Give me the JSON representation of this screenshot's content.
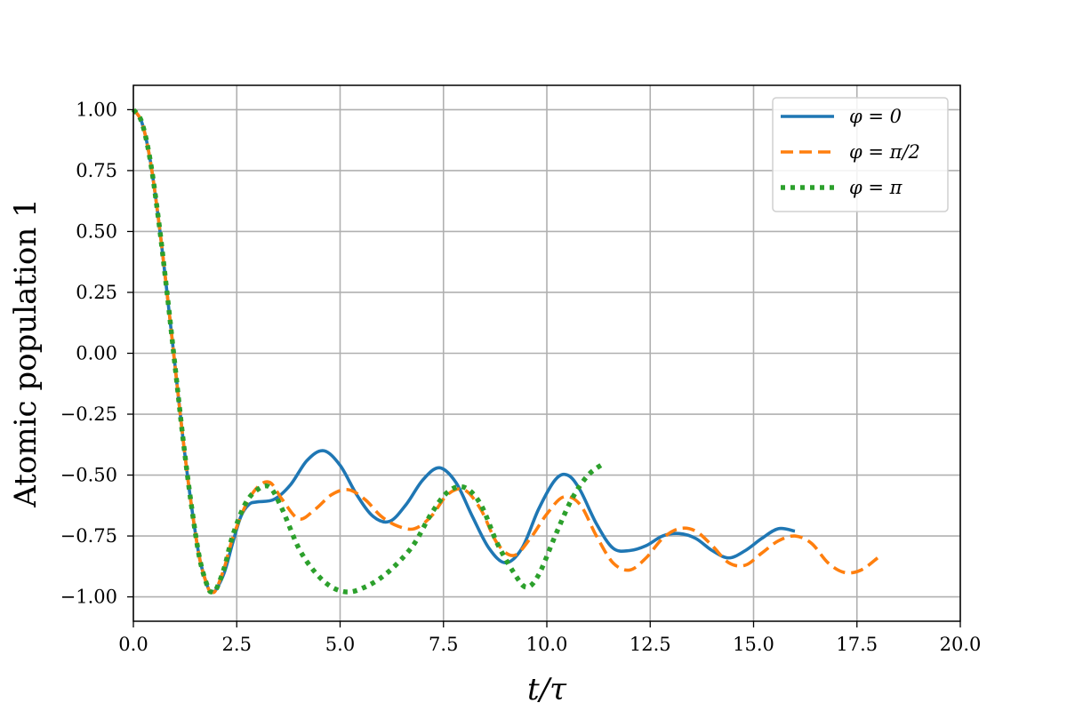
{
  "chart_data": {
    "type": "line",
    "title": "",
    "xlabel": "t/τ",
    "ylabel": "Atomic population 1",
    "xlim": [
      0,
      20
    ],
    "ylim": [
      -1.1,
      1.1
    ],
    "xticks": [
      "0.0",
      "2.5",
      "5.0",
      "7.5",
      "10.0",
      "12.5",
      "15.0",
      "17.5",
      "20.0"
    ],
    "yticks": [
      "1.00",
      "0.75",
      "0.50",
      "0.25",
      "0.00",
      "−0.25",
      "−0.50",
      "−0.75",
      "−1.00"
    ],
    "grid": true,
    "legend_position": "top-right",
    "series": [
      {
        "name": "φ = 0",
        "color": "#1f77b4",
        "style": "solid",
        "points": [
          [
            0,
            1.0
          ],
          [
            0.2,
            0.95
          ],
          [
            0.4,
            0.8
          ],
          [
            0.6,
            0.56
          ],
          [
            0.8,
            0.27
          ],
          [
            1.0,
            -0.04
          ],
          [
            1.2,
            -0.35
          ],
          [
            1.4,
            -0.62
          ],
          [
            1.6,
            -0.84
          ],
          [
            1.8,
            -0.96
          ],
          [
            1.9,
            -0.98
          ],
          [
            2.0,
            -0.97
          ],
          [
            2.2,
            -0.9
          ],
          [
            2.4,
            -0.78
          ],
          [
            2.6,
            -0.67
          ],
          [
            2.8,
            -0.62
          ],
          [
            3.0,
            -0.61
          ],
          [
            3.4,
            -0.6
          ],
          [
            3.8,
            -0.54
          ],
          [
            4.2,
            -0.44
          ],
          [
            4.6,
            -0.4
          ],
          [
            5.0,
            -0.46
          ],
          [
            5.4,
            -0.58
          ],
          [
            5.8,
            -0.67
          ],
          [
            6.2,
            -0.69
          ],
          [
            6.6,
            -0.62
          ],
          [
            7.0,
            -0.52
          ],
          [
            7.4,
            -0.47
          ],
          [
            7.8,
            -0.53
          ],
          [
            8.2,
            -0.67
          ],
          [
            8.6,
            -0.8
          ],
          [
            9.0,
            -0.86
          ],
          [
            9.4,
            -0.8
          ],
          [
            9.8,
            -0.64
          ],
          [
            10.2,
            -0.52
          ],
          [
            10.5,
            -0.5
          ],
          [
            10.8,
            -0.56
          ],
          [
            11.2,
            -0.7
          ],
          [
            11.6,
            -0.8
          ],
          [
            12.0,
            -0.81
          ],
          [
            12.4,
            -0.79
          ],
          [
            12.8,
            -0.75
          ],
          [
            13.2,
            -0.74
          ],
          [
            13.6,
            -0.76
          ],
          [
            14.0,
            -0.81
          ],
          [
            14.4,
            -0.84
          ],
          [
            14.8,
            -0.81
          ],
          [
            15.2,
            -0.76
          ],
          [
            15.6,
            -0.72
          ],
          [
            16.0,
            -0.73
          ]
        ]
      },
      {
        "name": "φ = π/2",
        "color": "#ff7f0e",
        "style": "dashed",
        "points": [
          [
            0,
            1.0
          ],
          [
            0.2,
            0.95
          ],
          [
            0.4,
            0.8
          ],
          [
            0.6,
            0.56
          ],
          [
            0.8,
            0.27
          ],
          [
            1.0,
            -0.04
          ],
          [
            1.2,
            -0.35
          ],
          [
            1.4,
            -0.62
          ],
          [
            1.6,
            -0.84
          ],
          [
            1.8,
            -0.96
          ],
          [
            1.9,
            -0.98
          ],
          [
            2.0,
            -0.97
          ],
          [
            2.2,
            -0.88
          ],
          [
            2.4,
            -0.76
          ],
          [
            2.7,
            -0.63
          ],
          [
            3.0,
            -0.55
          ],
          [
            3.3,
            -0.53
          ],
          [
            3.6,
            -0.6
          ],
          [
            4.0,
            -0.68
          ],
          [
            4.4,
            -0.64
          ],
          [
            4.8,
            -0.58
          ],
          [
            5.2,
            -0.56
          ],
          [
            5.6,
            -0.6
          ],
          [
            6.0,
            -0.67
          ],
          [
            6.4,
            -0.71
          ],
          [
            6.8,
            -0.72
          ],
          [
            7.2,
            -0.67
          ],
          [
            7.6,
            -0.58
          ],
          [
            8.0,
            -0.56
          ],
          [
            8.4,
            -0.64
          ],
          [
            8.8,
            -0.78
          ],
          [
            9.2,
            -0.83
          ],
          [
            9.6,
            -0.76
          ],
          [
            10.0,
            -0.66
          ],
          [
            10.4,
            -0.59
          ],
          [
            10.8,
            -0.62
          ],
          [
            11.2,
            -0.75
          ],
          [
            11.6,
            -0.86
          ],
          [
            12.0,
            -0.89
          ],
          [
            12.4,
            -0.84
          ],
          [
            12.8,
            -0.76
          ],
          [
            13.2,
            -0.72
          ],
          [
            13.6,
            -0.73
          ],
          [
            14.0,
            -0.79
          ],
          [
            14.4,
            -0.86
          ],
          [
            14.8,
            -0.87
          ],
          [
            15.2,
            -0.82
          ],
          [
            15.6,
            -0.77
          ],
          [
            16.0,
            -0.75
          ],
          [
            16.4,
            -0.78
          ],
          [
            16.8,
            -0.86
          ],
          [
            17.2,
            -0.9
          ],
          [
            17.6,
            -0.89
          ],
          [
            18.0,
            -0.84
          ]
        ]
      },
      {
        "name": "φ = π",
        "color": "#2ca02c",
        "style": "dotted",
        "points": [
          [
            0,
            1.0
          ],
          [
            0.2,
            0.95
          ],
          [
            0.4,
            0.8
          ],
          [
            0.6,
            0.56
          ],
          [
            0.8,
            0.27
          ],
          [
            1.0,
            -0.04
          ],
          [
            1.2,
            -0.35
          ],
          [
            1.4,
            -0.62
          ],
          [
            1.6,
            -0.84
          ],
          [
            1.8,
            -0.96
          ],
          [
            1.9,
            -0.98
          ],
          [
            2.0,
            -0.97
          ],
          [
            2.2,
            -0.88
          ],
          [
            2.4,
            -0.75
          ],
          [
            2.7,
            -0.62
          ],
          [
            3.0,
            -0.56
          ],
          [
            3.3,
            -0.55
          ],
          [
            3.6,
            -0.64
          ],
          [
            4.0,
            -0.8
          ],
          [
            4.4,
            -0.9
          ],
          [
            4.8,
            -0.96
          ],
          [
            5.2,
            -0.98
          ],
          [
            5.6,
            -0.96
          ],
          [
            6.0,
            -0.92
          ],
          [
            6.4,
            -0.86
          ],
          [
            6.8,
            -0.78
          ],
          [
            7.2,
            -0.66
          ],
          [
            7.6,
            -0.57
          ],
          [
            8.0,
            -0.55
          ],
          [
            8.4,
            -0.62
          ],
          [
            8.8,
            -0.78
          ],
          [
            9.2,
            -0.9
          ],
          [
            9.5,
            -0.96
          ],
          [
            9.8,
            -0.91
          ],
          [
            10.2,
            -0.75
          ],
          [
            10.6,
            -0.6
          ],
          [
            11.0,
            -0.5
          ],
          [
            11.4,
            -0.45
          ]
        ]
      }
    ]
  }
}
